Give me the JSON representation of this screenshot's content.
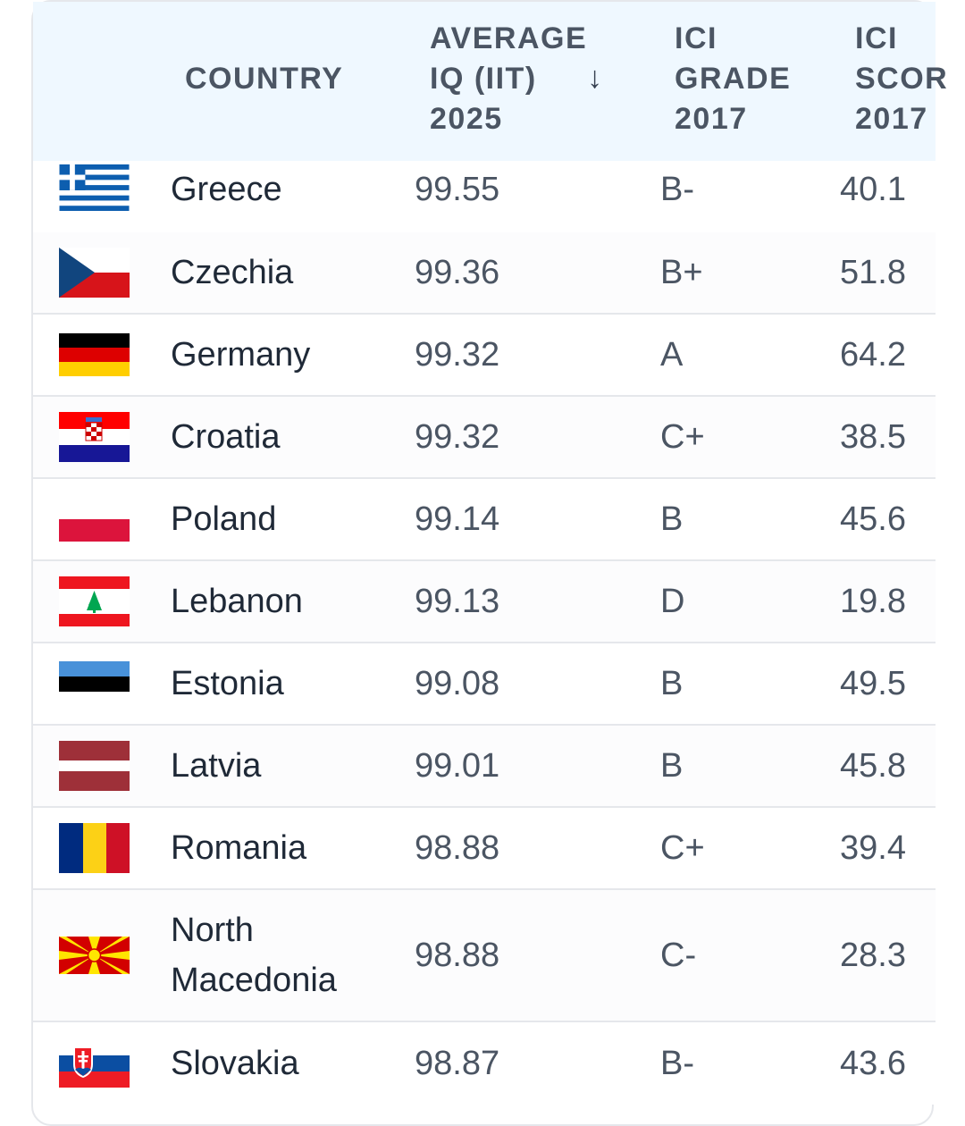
{
  "columns": {
    "country": "COUNTRY",
    "iq": "AVERAGE\nIQ (IIT)\n2025",
    "sort_icon": "arrow-down-icon",
    "sort_glyph": "↓",
    "grade": "ICI\nGRADE\n2017",
    "score": "ICI\nSCOR\n2017"
  },
  "rows": [
    {
      "country": "Greece",
      "iq": "99.55",
      "grade": "B-",
      "score": "40.1",
      "flag": "greece"
    },
    {
      "country": "Czechia",
      "iq": "99.36",
      "grade": "B+",
      "score": "51.8",
      "flag": "czechia"
    },
    {
      "country": "Germany",
      "iq": "99.32",
      "grade": "A",
      "score": "64.2",
      "flag": "germany"
    },
    {
      "country": "Croatia",
      "iq": "99.32",
      "grade": "C+",
      "score": "38.5",
      "flag": "croatia"
    },
    {
      "country": "Poland",
      "iq": "99.14",
      "grade": "B",
      "score": "45.6",
      "flag": "poland"
    },
    {
      "country": "Lebanon",
      "iq": "99.13",
      "grade": "D",
      "score": "19.8",
      "flag": "lebanon"
    },
    {
      "country": "Estonia",
      "iq": "99.08",
      "grade": "B",
      "score": "49.5",
      "flag": "estonia"
    },
    {
      "country": "Latvia",
      "iq": "99.01",
      "grade": "B",
      "score": "45.8",
      "flag": "latvia"
    },
    {
      "country": "Romania",
      "iq": "98.88",
      "grade": "C+",
      "score": "39.4",
      "flag": "romania"
    },
    {
      "country": "North Macedonia",
      "iq": "98.88",
      "grade": "C-",
      "score": "28.3",
      "flag": "north-macedonia"
    },
    {
      "country": "Slovakia",
      "iq": "98.87",
      "grade": "B-",
      "score": "43.6",
      "flag": "slovakia"
    }
  ],
  "colors": {
    "header_bg": "#eff8ff",
    "border": "#e5e7eb",
    "text": "#1f2937",
    "muted": "#4b5563"
  }
}
